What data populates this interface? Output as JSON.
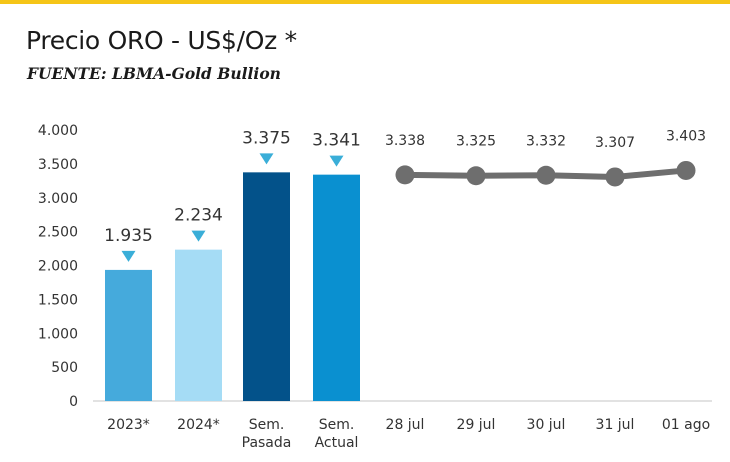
{
  "header": {
    "accent_bar_color": "#f5c518",
    "title": "Precio ORO - US$/Oz *",
    "subtitle": "FUENTE: LBMA-Gold Bullion"
  },
  "chart_data": {
    "type": "bar+line",
    "title": "Precio ORO - US$/Oz *",
    "subtitle": "FUENTE: LBMA-Gold Bullion",
    "xlabel": "",
    "ylabel": "",
    "ylim": [
      0,
      4000
    ],
    "yticks": [
      0,
      500,
      1000,
      1500,
      2000,
      2500,
      3000,
      3500,
      4000
    ],
    "ytick_labels": [
      "0",
      "500",
      "1.000",
      "1.500",
      "2.000",
      "2.500",
      "3.000",
      "3.500",
      "4.000"
    ],
    "grid": false,
    "legend": "none",
    "bars": {
      "categories": [
        {
          "lines": [
            "2023*"
          ]
        },
        {
          "lines": [
            "2024*"
          ]
        },
        {
          "lines": [
            "Sem.",
            "Pasada"
          ]
        },
        {
          "lines": [
            "Sem.",
            "Actual"
          ]
        }
      ],
      "values": [
        1935,
        2234,
        3375,
        3341
      ],
      "labels": [
        "1.935",
        "2.234",
        "3.375",
        "3.341"
      ],
      "colors": [
        "#45aadc",
        "#a5dcf5",
        "#03528a",
        "#0a90d0"
      ],
      "marker_color": "#3aaed8",
      "marker": "down-triangle"
    },
    "line": {
      "categories": [
        "28 jul",
        "29 jul",
        "30 jul",
        "31 jul",
        "01 ago"
      ],
      "values": [
        3338,
        3325,
        3332,
        3307,
        3403
      ],
      "labels": [
        "3.338",
        "3.325",
        "3.332",
        "3.307",
        "3.403"
      ],
      "color": "#6e6e6e"
    }
  }
}
